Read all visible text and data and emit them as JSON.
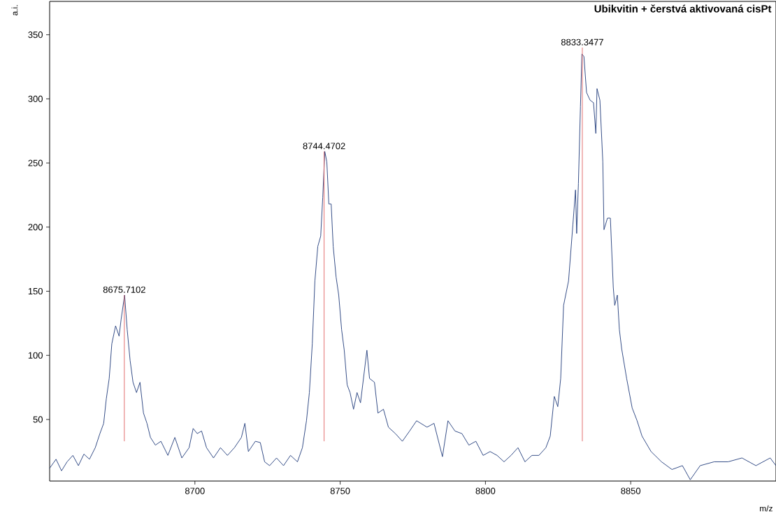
{
  "chart_data": {
    "type": "line",
    "title": "Ubikvitin + čerstvá aktivovaná cisPt",
    "xlabel": "m/z",
    "ylabel": "a.i.",
    "xlim": [
      8650,
      8900
    ],
    "ylim": [
      2,
      376
    ],
    "xticks": [
      8700,
      8750,
      8800,
      8850
    ],
    "yticks": [
      50,
      100,
      150,
      200,
      250,
      300,
      350
    ],
    "series": [
      {
        "color": "#1f3a7a",
        "x": [
          8650.0,
          8652.2,
          8654.1,
          8656.0,
          8658.0,
          8659.9,
          8661.8,
          8663.7,
          8665.7,
          8667.3,
          8668.6,
          8669.5,
          8670.5,
          8671.4,
          8672.7,
          8673.9,
          8674.6,
          8675.8,
          8676.7,
          8677.7,
          8678.7,
          8679.9,
          8681.1,
          8682.3,
          8683.5,
          8684.7,
          8686.4,
          8688.3,
          8690.7,
          8693.1,
          8695.5,
          8698.0,
          8699.4,
          8700.8,
          8702.3,
          8704.0,
          8706.4,
          8708.8,
          8711.2,
          8713.6,
          8716.0,
          8717.2,
          8718.4,
          8720.8,
          8722.5,
          8724.0,
          8725.7,
          8728.1,
          8730.5,
          8732.9,
          8735.3,
          8737.0,
          8738.4,
          8739.4,
          8740.4,
          8741.3,
          8742.3,
          8743.3,
          8744.0,
          8744.7,
          8745.4,
          8746.1,
          8746.9,
          8747.6,
          8748.6,
          8749.5,
          8750.5,
          8751.4,
          8752.4,
          8753.4,
          8754.6,
          8755.8,
          8757.0,
          8759.2,
          8760.1,
          8761.8,
          8763.0,
          8764.9,
          8766.6,
          8769.0,
          8771.4,
          8773.9,
          8776.3,
          8779.9,
          8782.3,
          8785.2,
          8787.1,
          8789.5,
          8791.9,
          8794.3,
          8796.7,
          8799.2,
          8801.6,
          8804.0,
          8806.4,
          8808.8,
          8811.2,
          8813.6,
          8816.0,
          8818.4,
          8820.8,
          8822.3,
          8823.7,
          8824.9,
          8825.9,
          8826.9,
          8828.6,
          8830.1,
          8831.0,
          8831.4,
          8832.0,
          8832.7,
          8833.2,
          8833.9,
          8834.8,
          8836.0,
          8837.2,
          8838.0,
          8838.4,
          8839.4,
          8840.4,
          8840.8,
          8842.0,
          8843.0,
          8844.0,
          8844.5,
          8845.4,
          8846.1,
          8846.9,
          8848.6,
          8850.5,
          8852.2,
          8853.9,
          8857.0,
          8860.6,
          8864.2,
          8867.8,
          8870.5,
          8873.9,
          8878.7,
          8883.5,
          8888.3,
          8893.1,
          8898.0,
          8900.0
        ],
        "values": [
          12,
          19,
          10,
          17,
          22,
          14,
          23,
          19,
          28,
          39,
          47,
          66,
          82,
          109,
          123,
          115,
          128,
          147,
          120,
          96,
          79,
          71,
          79,
          55,
          47,
          36,
          30,
          33,
          22,
          36,
          20,
          28,
          43,
          39,
          41,
          28,
          20,
          28,
          22,
          28,
          36,
          47,
          25,
          33,
          32,
          17,
          14,
          20,
          14,
          22,
          17,
          28,
          49,
          71,
          109,
          158,
          185,
          193,
          223,
          259,
          251,
          218,
          218,
          185,
          161,
          147,
          120,
          104,
          77,
          71,
          58,
          71,
          63,
          104,
          82,
          79,
          55,
          58,
          44,
          39,
          33,
          41,
          49,
          44,
          47,
          21,
          49,
          41,
          39,
          30,
          33,
          22,
          25,
          22,
          17,
          22,
          28,
          17,
          22,
          22,
          28,
          37,
          68,
          60,
          82,
          139,
          158,
          202,
          229,
          195,
          234,
          294,
          335,
          333,
          305,
          299,
          297,
          273,
          308,
          299,
          251,
          198,
          207,
          207,
          153,
          139,
          147,
          120,
          105,
          82,
          59,
          49,
          37,
          25,
          17,
          11,
          14,
          3,
          14,
          17,
          17,
          20,
          14,
          20,
          14
        ]
      },
      {
        "type": "line",
        "color": "#e06060",
        "x": [
          8675.7102,
          8675.7102
        ],
        "values": [
          33,
          147
        ]
      },
      {
        "type": "line",
        "color": "#e06060",
        "x": [
          8744.4702,
          8744.4702
        ],
        "values": [
          33,
          259
        ]
      },
      {
        "type": "line",
        "color": "#e06060",
        "x": [
          8833.3477,
          8833.3477
        ],
        "values": [
          33,
          340
        ]
      }
    ],
    "annotations": [
      {
        "text": "8675.7102",
        "x": 8675.7102,
        "y": 147
      },
      {
        "text": "8744.4702",
        "x": 8744.4702,
        "y": 259
      },
      {
        "text": "8833.3477",
        "x": 8833.3477,
        "y": 340
      }
    ]
  }
}
